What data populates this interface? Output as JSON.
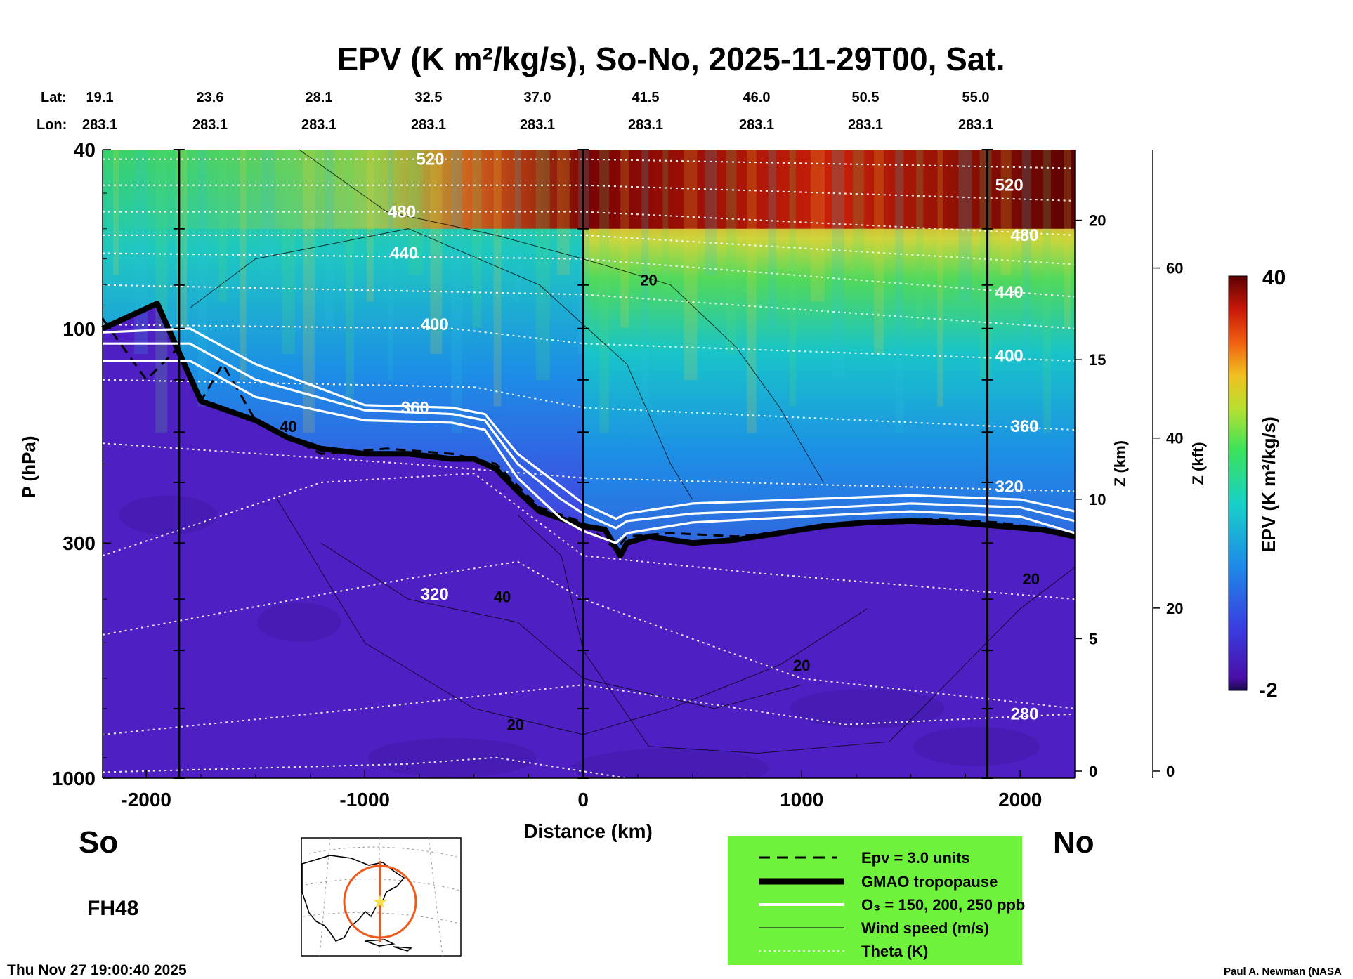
{
  "chart_data": {
    "type": "heatmap",
    "title": "EPV (K m²/kg/s), So-No, 2025-11-29T00, Sat.",
    "xlabel": "Distance (km)",
    "ylabel": "P (hPa)",
    "zlabel_km": "Z (km)",
    "zlabel_kft": "Z (kft)",
    "colorbar_label": "EPV (K m²/kg/s)",
    "colorbar_range": [
      -2,
      40
    ],
    "xlim": [
      -2200,
      2250
    ],
    "ylim": [
      1000,
      40
    ],
    "x_ticks": [
      -2000,
      -1000,
      0,
      1000,
      2000
    ],
    "y_ticks": [
      1000,
      300,
      100,
      40
    ],
    "z_km_ticks": [
      0,
      5,
      10,
      15,
      20
    ],
    "z_kft_ticks": [
      0,
      20,
      40,
      60
    ],
    "vertical_markers_km": [
      -1850,
      0,
      1850
    ],
    "lat_label": "Lat:",
    "lon_label": "Lon:",
    "lat_ticks": [
      "19.1",
      "23.6",
      "28.1",
      "32.5",
      "37.0",
      "41.5",
      "46.0",
      "50.5",
      "55.0"
    ],
    "lon_ticks": [
      "283.1",
      "283.1",
      "283.1",
      "283.1",
      "283.1",
      "283.1",
      "283.1",
      "283.1",
      "283.1"
    ],
    "theta_labels": [
      {
        "text": "520",
        "x": -700,
        "p": 42
      },
      {
        "text": "480",
        "x": -830,
        "p": 55
      },
      {
        "text": "440",
        "x": -820,
        "p": 68
      },
      {
        "text": "400",
        "x": -680,
        "p": 98
      },
      {
        "text": "360",
        "x": -770,
        "p": 150
      },
      {
        "text": "320",
        "x": -680,
        "p": 390
      },
      {
        "text": "520",
        "x": 1950,
        "p": 48
      },
      {
        "text": "480",
        "x": 2020,
        "p": 62
      },
      {
        "text": "440",
        "x": 1950,
        "p": 83
      },
      {
        "text": "400",
        "x": 1950,
        "p": 115
      },
      {
        "text": "360",
        "x": 2020,
        "p": 165
      },
      {
        "text": "320",
        "x": 1950,
        "p": 225
      },
      {
        "text": "280",
        "x": 2020,
        "p": 720
      }
    ],
    "wind_labels": [
      {
        "text": "20",
        "x": 300,
        "p": 78
      },
      {
        "text": "40",
        "x": -1350,
        "p": 165
      },
      {
        "text": "40",
        "x": -370,
        "p": 395
      },
      {
        "text": "20",
        "x": 1000,
        "p": 560
      },
      {
        "text": "20",
        "x": -310,
        "p": 760
      },
      {
        "text": "20",
        "x": 2050,
        "p": 360
      }
    ],
    "colorbar_ticks": [
      "40",
      "-2"
    ],
    "legend": [
      "Epv = 3.0 units",
      "GMAO tropopause",
      "O₃ = 150, 200, 250 ppb",
      "Wind speed (m/s)",
      "Theta (K)"
    ],
    "series": [
      {
        "name": "GMAO tropopause",
        "x": [
          -2200,
          -1950,
          -1750,
          -1500,
          -1350,
          -1200,
          -1000,
          -800,
          -600,
          -500,
          -400,
          -300,
          -200,
          -100,
          0,
          100,
          170,
          200,
          300,
          500,
          700,
          900,
          1100,
          1300,
          1500,
          1700,
          1900,
          2100,
          2250
        ],
        "p": [
          100,
          88,
          145,
          160,
          175,
          185,
          190,
          190,
          195,
          195,
          205,
          230,
          255,
          265,
          275,
          280,
          320,
          300,
          290,
          300,
          295,
          285,
          275,
          270,
          268,
          270,
          275,
          280,
          290
        ]
      },
      {
        "name": "Epv = 3.0 units",
        "x": [
          -2200,
          -2000,
          -1850,
          -1750,
          -1650,
          -1500,
          -1200,
          -900,
          -600,
          -400,
          -200,
          0,
          150,
          200,
          400,
          700,
          1000,
          1300,
          1600,
          1900,
          2250
        ],
        "p": [
          95,
          130,
          110,
          145,
          120,
          160,
          190,
          185,
          190,
          200,
          250,
          270,
          310,
          290,
          285,
          290,
          280,
          270,
          265,
          270,
          285
        ]
      },
      {
        "name": "O3 = 150 ppb",
        "x": [
          -2200,
          -1800,
          -1500,
          -1000,
          -600,
          -450,
          -300,
          -100,
          0,
          150,
          200,
          500,
          1000,
          1500,
          2000,
          2250
        ],
        "p": [
          102,
          100,
          120,
          148,
          150,
          155,
          190,
          225,
          245,
          265,
          258,
          245,
          240,
          235,
          240,
          255
        ]
      },
      {
        "name": "O3 = 200 ppb",
        "x": [
          -2200,
          -1800,
          -1500,
          -1000,
          -600,
          -450,
          -300,
          -100,
          0,
          150,
          200,
          500,
          1000,
          1500,
          2000,
          2250
        ],
        "p": [
          108,
          108,
          130,
          152,
          155,
          160,
          200,
          240,
          258,
          278,
          268,
          258,
          252,
          245,
          250,
          268
        ]
      },
      {
        "name": "O3 = 250 ppb",
        "x": [
          -2200,
          -1800,
          -1500,
          -1000,
          -600,
          -450,
          -300,
          -100,
          0,
          150,
          200,
          500,
          1000,
          1500,
          2000,
          2250
        ],
        "p": [
          118,
          118,
          142,
          160,
          162,
          168,
          215,
          265,
          282,
          300,
          285,
          270,
          262,
          255,
          262,
          285
        ]
      }
    ]
  },
  "footer": {
    "so_label": "So",
    "no_label": "No",
    "fh_label": "FH48",
    "timestamp": "Thu Nov 27 19:00:40 2025",
    "credit": "Paul A. Newman (NASA"
  },
  "colors": {
    "legend_bg": "#6ef23c",
    "map_track": "#ee5a1e",
    "map_star": "#f5e04a"
  }
}
